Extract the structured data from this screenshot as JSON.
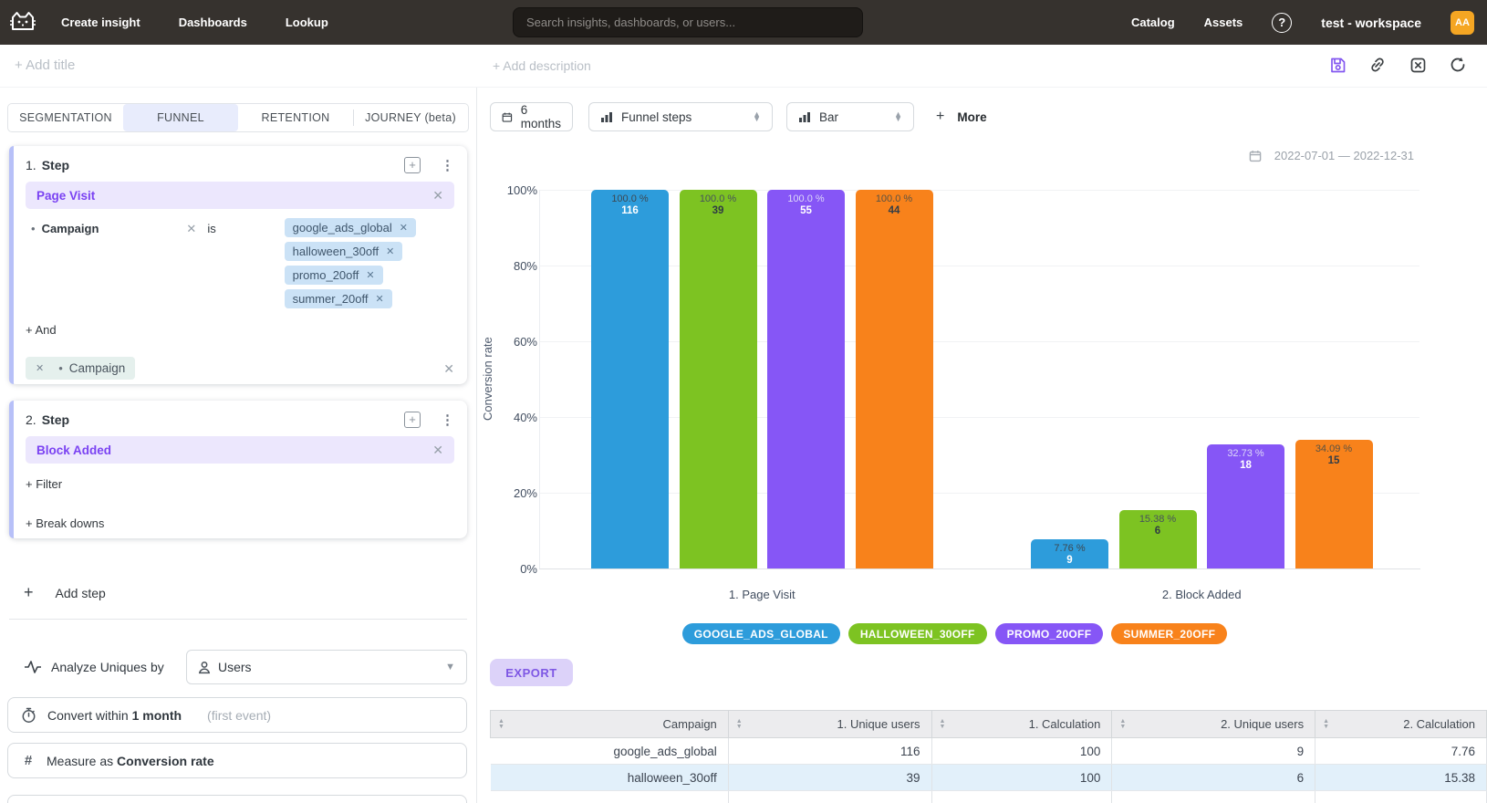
{
  "topnav": {
    "links": [
      "Create insight",
      "Dashboards",
      "Lookup"
    ],
    "search_placeholder": "Search insights, dashboards, or users...",
    "right_links": [
      "Catalog",
      "Assets"
    ],
    "help_glyph": "?",
    "workspace_name": "test - workspace",
    "avatar_initials": "AA",
    "colors": {
      "bar_bg": "#36322e",
      "avatar_bg": "#f5a623",
      "accent_purple": "#8458f0"
    }
  },
  "titlebar": {
    "add_title": "+ Add title",
    "add_description": "+ Add description"
  },
  "builder": {
    "tabs": [
      {
        "label": "SEGMENTATION",
        "active": false
      },
      {
        "label": "FUNNEL",
        "active": true
      },
      {
        "label": "RETENTION",
        "active": false
      },
      {
        "label": "JOURNEY (beta)",
        "active": false
      }
    ],
    "step1": {
      "number": "1.",
      "title": "Step",
      "event": "Page Visit",
      "filter": {
        "property": "Campaign",
        "operator": "is",
        "values": [
          "google_ads_global",
          "halloween_30off",
          "promo_20off",
          "summer_20off"
        ]
      },
      "and_label": "+ And",
      "breakdown_property": "Campaign"
    },
    "step2": {
      "number": "2.",
      "title": "Step",
      "event": "Block Added",
      "filter_label": "+ Filter",
      "breakdowns_label": "+ Break downs"
    },
    "add_step_label": "Add step",
    "analyze": {
      "label": "Analyze Uniques by",
      "value": "Users"
    },
    "convert": {
      "prefix": "Convert within",
      "value": "1 month",
      "hint": "(first event)"
    },
    "measure": {
      "prefix": "Measure as",
      "value": "Conversion rate"
    }
  },
  "chart_toolbar": {
    "range_button": "6 months",
    "breakdown_select": "Funnel steps",
    "type_select": "Bar",
    "more_label": "More",
    "date_range": "2022-07-01 — 2022-12-31"
  },
  "chart_data": {
    "type": "bar",
    "title": "",
    "xlabel": "",
    "ylabel": "Conversion rate",
    "ylim": [
      0,
      100
    ],
    "grid": true,
    "legend_position": "bottom",
    "yticks": [
      {
        "label": "100%",
        "pct": 100
      },
      {
        "label": "80%",
        "pct": 80
      },
      {
        "label": "60%",
        "pct": 60
      },
      {
        "label": "40%",
        "pct": 40
      },
      {
        "label": "20%",
        "pct": 20
      },
      {
        "label": "0%",
        "pct": 0
      }
    ],
    "categories": [
      "1. Page Visit",
      "2. Block Added"
    ],
    "series": [
      {
        "name": "GOOGLE_ADS_GLOBAL",
        "color": "#2d9cdb",
        "pct_text_color": "#3d4852",
        "count_text_color": "#ffffff",
        "values": [
          {
            "pct": 100.0,
            "pct_label": "100.0 %",
            "count": 116
          },
          {
            "pct": 7.76,
            "pct_label": "7.76 %",
            "count": 9
          }
        ]
      },
      {
        "name": "HALLOWEEN_30OFF",
        "color": "#7dc322",
        "pct_text_color": "#47525c",
        "count_text_color": "#303b45",
        "values": [
          {
            "pct": 100.0,
            "pct_label": "100.0 %",
            "count": 39
          },
          {
            "pct": 15.38,
            "pct_label": "15.38 %",
            "count": 6
          }
        ]
      },
      {
        "name": "PROMO_20OFF",
        "color": "#8656f6",
        "pct_text_color": "#ddd8f8",
        "count_text_color": "#ffffff",
        "values": [
          {
            "pct": 100.0,
            "pct_label": "100.0 %",
            "count": 55
          },
          {
            "pct": 32.73,
            "pct_label": "32.73 %",
            "count": 18
          }
        ]
      },
      {
        "name": "SUMMER_20OFF",
        "color": "#f8821b",
        "pct_text_color": "#5a5243",
        "count_text_color": "#333d47",
        "values": [
          {
            "pct": 100.0,
            "pct_label": "100.0 %",
            "count": 44
          },
          {
            "pct": 34.09,
            "pct_label": "34.09 %",
            "count": 15
          }
        ]
      }
    ]
  },
  "export_label": "EXPORT",
  "table": {
    "columns": [
      "Campaign",
      "1. Unique users",
      "1. Calculation",
      "2. Unique users",
      "2. Calculation"
    ],
    "rows": [
      [
        "google_ads_global",
        "116",
        "100",
        "9",
        "7.76"
      ],
      [
        "halloween_30off",
        "39",
        "100",
        "6",
        "15.38"
      ]
    ]
  }
}
